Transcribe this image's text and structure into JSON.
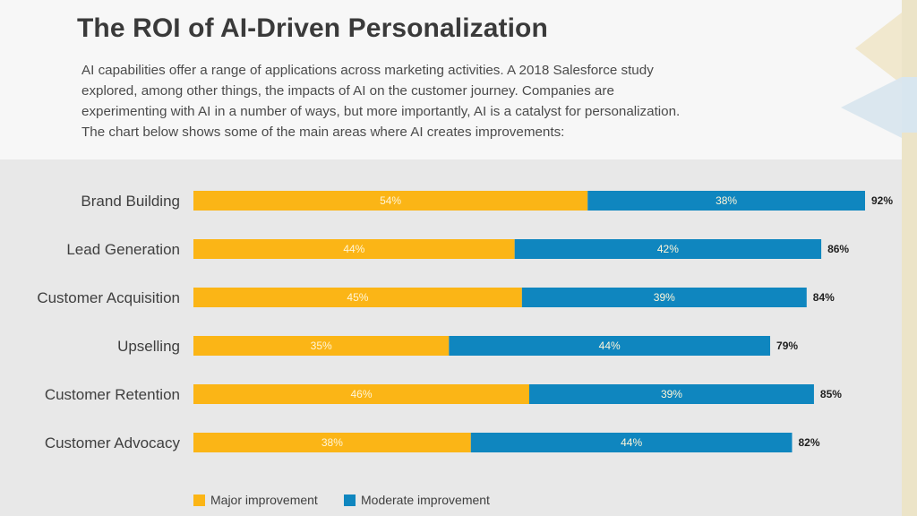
{
  "header": {
    "title": "The ROI of AI-Driven Personalization",
    "intro_lines": [
      "AI capabilities offer a range of applications across marketing activities. A 2018 Salesforce study",
      "explored, among other things, the impacts of AI on the customer journey. Companies are",
      "experimenting with AI in a number of ways, but more importantly, AI is a catalyst for personalization.",
      "The chart below shows some of the main areas where AI creates improvements:"
    ]
  },
  "colors": {
    "major": "#fbb516",
    "moderate": "#0f86bf",
    "text": "#3f3f3f",
    "value_label": "#fff6d9",
    "total_label": "#1f1f1f"
  },
  "chart_data": {
    "type": "bar",
    "orientation": "horizontal",
    "stacked": true,
    "categories": [
      "Brand Building",
      "Lead Generation",
      "Customer Acquisition",
      "Upselling",
      "Customer Retention",
      "Customer Advocacy"
    ],
    "series": [
      {
        "name": "Major improvement",
        "values": [
          54,
          44,
          45,
          35,
          46,
          38
        ],
        "labels": [
          "54%",
          "44%",
          "45%",
          "35%",
          "46%",
          "38%"
        ]
      },
      {
        "name": "Moderate improvement",
        "values": [
          38,
          42,
          39,
          44,
          39,
          44
        ],
        "labels": [
          "38%",
          "42%",
          "39%",
          "44%",
          "39%",
          "44%"
        ]
      }
    ],
    "totals": [
      92,
      86,
      84,
      79,
      85,
      82
    ],
    "total_labels": [
      "92%",
      "86%",
      "84%",
      "79%",
      "85%",
      "82%"
    ],
    "title": "",
    "xlabel": "",
    "ylabel": "",
    "xlim": [
      0,
      92
    ],
    "legend_position": "bottom-left",
    "grid": false
  }
}
